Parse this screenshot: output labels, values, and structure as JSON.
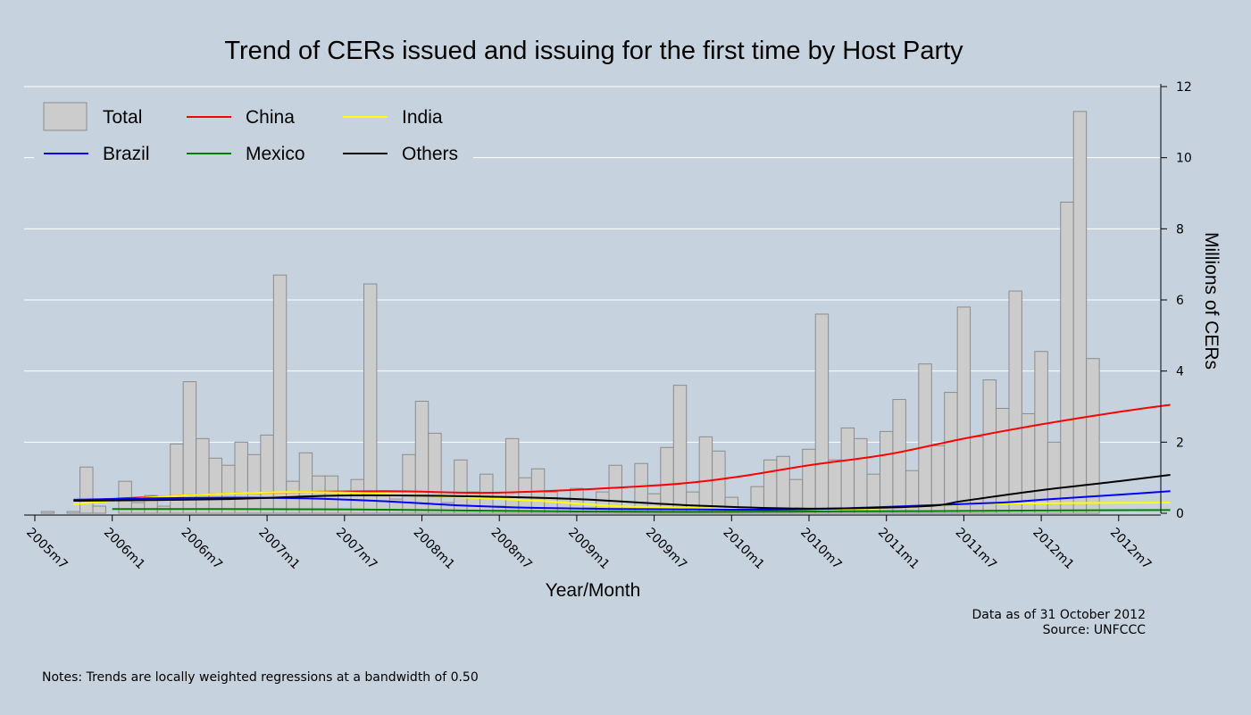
{
  "chart_data": {
    "type": "bar",
    "title": "Trend of CERs issued and issuing for the first time by Host Party",
    "xlabel": "Year/Month",
    "ylabel": "Millions of CERs",
    "ylim": [
      0,
      12
    ],
    "yticks": [
      "0",
      "2",
      "4",
      "6",
      "8",
      "10",
      "12"
    ],
    "grid": true,
    "legend_position": "top-left",
    "x_tick_labels": [
      "2005m7",
      "2006m1",
      "2006m7",
      "2007m1",
      "2007m7",
      "2008m1",
      "2008m7",
      "2009m1",
      "2009m7",
      "2010m1",
      "2010m7",
      "2011m1",
      "2011m7",
      "2012m1",
      "2012m7"
    ],
    "x_start": "2005m7",
    "series": [
      {
        "name": "Total",
        "kind": "bar",
        "color": "#cccccc",
        "values": [
          0.0,
          0.05,
          0.0,
          0.05,
          1.3,
          0.2,
          0.0,
          0.9,
          0.3,
          0.5,
          0.2,
          1.95,
          3.7,
          2.1,
          1.55,
          1.35,
          2.0,
          1.65,
          2.2,
          6.7,
          0.9,
          1.7,
          1.05,
          1.05,
          0.1,
          0.95,
          6.45,
          0.5,
          0.4,
          1.65,
          3.15,
          2.25,
          0.3,
          1.5,
          0.6,
          1.1,
          0.2,
          2.1,
          1.0,
          1.25,
          0.6,
          0.4,
          0.7,
          0.15,
          0.6,
          1.35,
          0.2,
          1.4,
          0.55,
          1.85,
          3.6,
          0.6,
          2.15,
          1.75,
          0.45,
          0.15,
          0.75,
          1.5,
          1.6,
          0.95,
          1.8,
          5.6,
          1.5,
          2.4,
          2.1,
          1.1,
          2.3,
          3.2,
          1.2,
          4.2,
          1.9,
          3.4,
          5.8,
          2.15,
          3.75,
          2.95,
          6.25,
          2.8,
          4.55,
          2.0,
          8.75,
          11.3,
          4.35
        ]
      },
      {
        "name": "China",
        "kind": "line",
        "color": "#ff0000",
        "x": [
          "2005m10",
          "2006m10",
          "2007m10",
          "2008m7",
          "2009m7",
          "2010m1",
          "2010m7",
          "2011m1",
          "2011m7",
          "2012m1",
          "2012m7",
          "2012m11"
        ],
        "values": [
          0.35,
          0.55,
          0.62,
          0.58,
          0.78,
          1.0,
          1.35,
          1.65,
          2.1,
          2.5,
          2.85,
          3.05
        ]
      },
      {
        "name": "India",
        "kind": "line",
        "color": "#ffff00",
        "x": [
          "2005m10",
          "2006m4",
          "2006m10",
          "2007m4",
          "2007m10",
          "2008m4",
          "2008m10",
          "2009m4",
          "2009m10",
          "2010m4",
          "2011m1",
          "2011m7",
          "2012m1",
          "2012m11"
        ],
        "values": [
          0.25,
          0.45,
          0.55,
          0.6,
          0.55,
          0.45,
          0.35,
          0.2,
          0.15,
          0.1,
          0.15,
          0.25,
          0.28,
          0.3
        ]
      },
      {
        "name": "Brazil",
        "kind": "line",
        "color": "#0000ff",
        "x": [
          "2005m10",
          "2006m4",
          "2006m10",
          "2007m4",
          "2007m10",
          "2008m4",
          "2008m10",
          "2009m4",
          "2009m10",
          "2010m4",
          "2010m10",
          "2011m4",
          "2011m10",
          "2012m1",
          "2012m7",
          "2012m11"
        ],
        "values": [
          0.38,
          0.42,
          0.44,
          0.42,
          0.34,
          0.22,
          0.15,
          0.12,
          0.11,
          0.1,
          0.14,
          0.22,
          0.3,
          0.38,
          0.52,
          0.62
        ]
      },
      {
        "name": "Mexico",
        "kind": "line",
        "color": "#008000",
        "x": [
          "2006m1",
          "2006m10",
          "2007m7",
          "2008m4",
          "2009m1",
          "2009m10",
          "2010m7",
          "2011m4",
          "2012m1",
          "2012m11"
        ],
        "values": [
          0.12,
          0.12,
          0.11,
          0.08,
          0.05,
          0.04,
          0.05,
          0.06,
          0.08,
          0.09
        ]
      },
      {
        "name": "Others",
        "kind": "line",
        "color": "#000000",
        "x": [
          "2005m10",
          "2006m10",
          "2007m7",
          "2008m4",
          "2009m1",
          "2009m10",
          "2010m7",
          "2011m4",
          "2011m7",
          "2012m1",
          "2012m7",
          "2012m11"
        ],
        "values": [
          0.35,
          0.4,
          0.5,
          0.48,
          0.4,
          0.22,
          0.13,
          0.2,
          0.35,
          0.65,
          0.9,
          1.08
        ]
      }
    ]
  },
  "notes": {
    "data_as_of": "Data as of 31 October 2012",
    "source": "Source: UNFCCC",
    "footnote": "Notes: Trends are locally weighted regressions at a bandwidth of 0.50"
  }
}
